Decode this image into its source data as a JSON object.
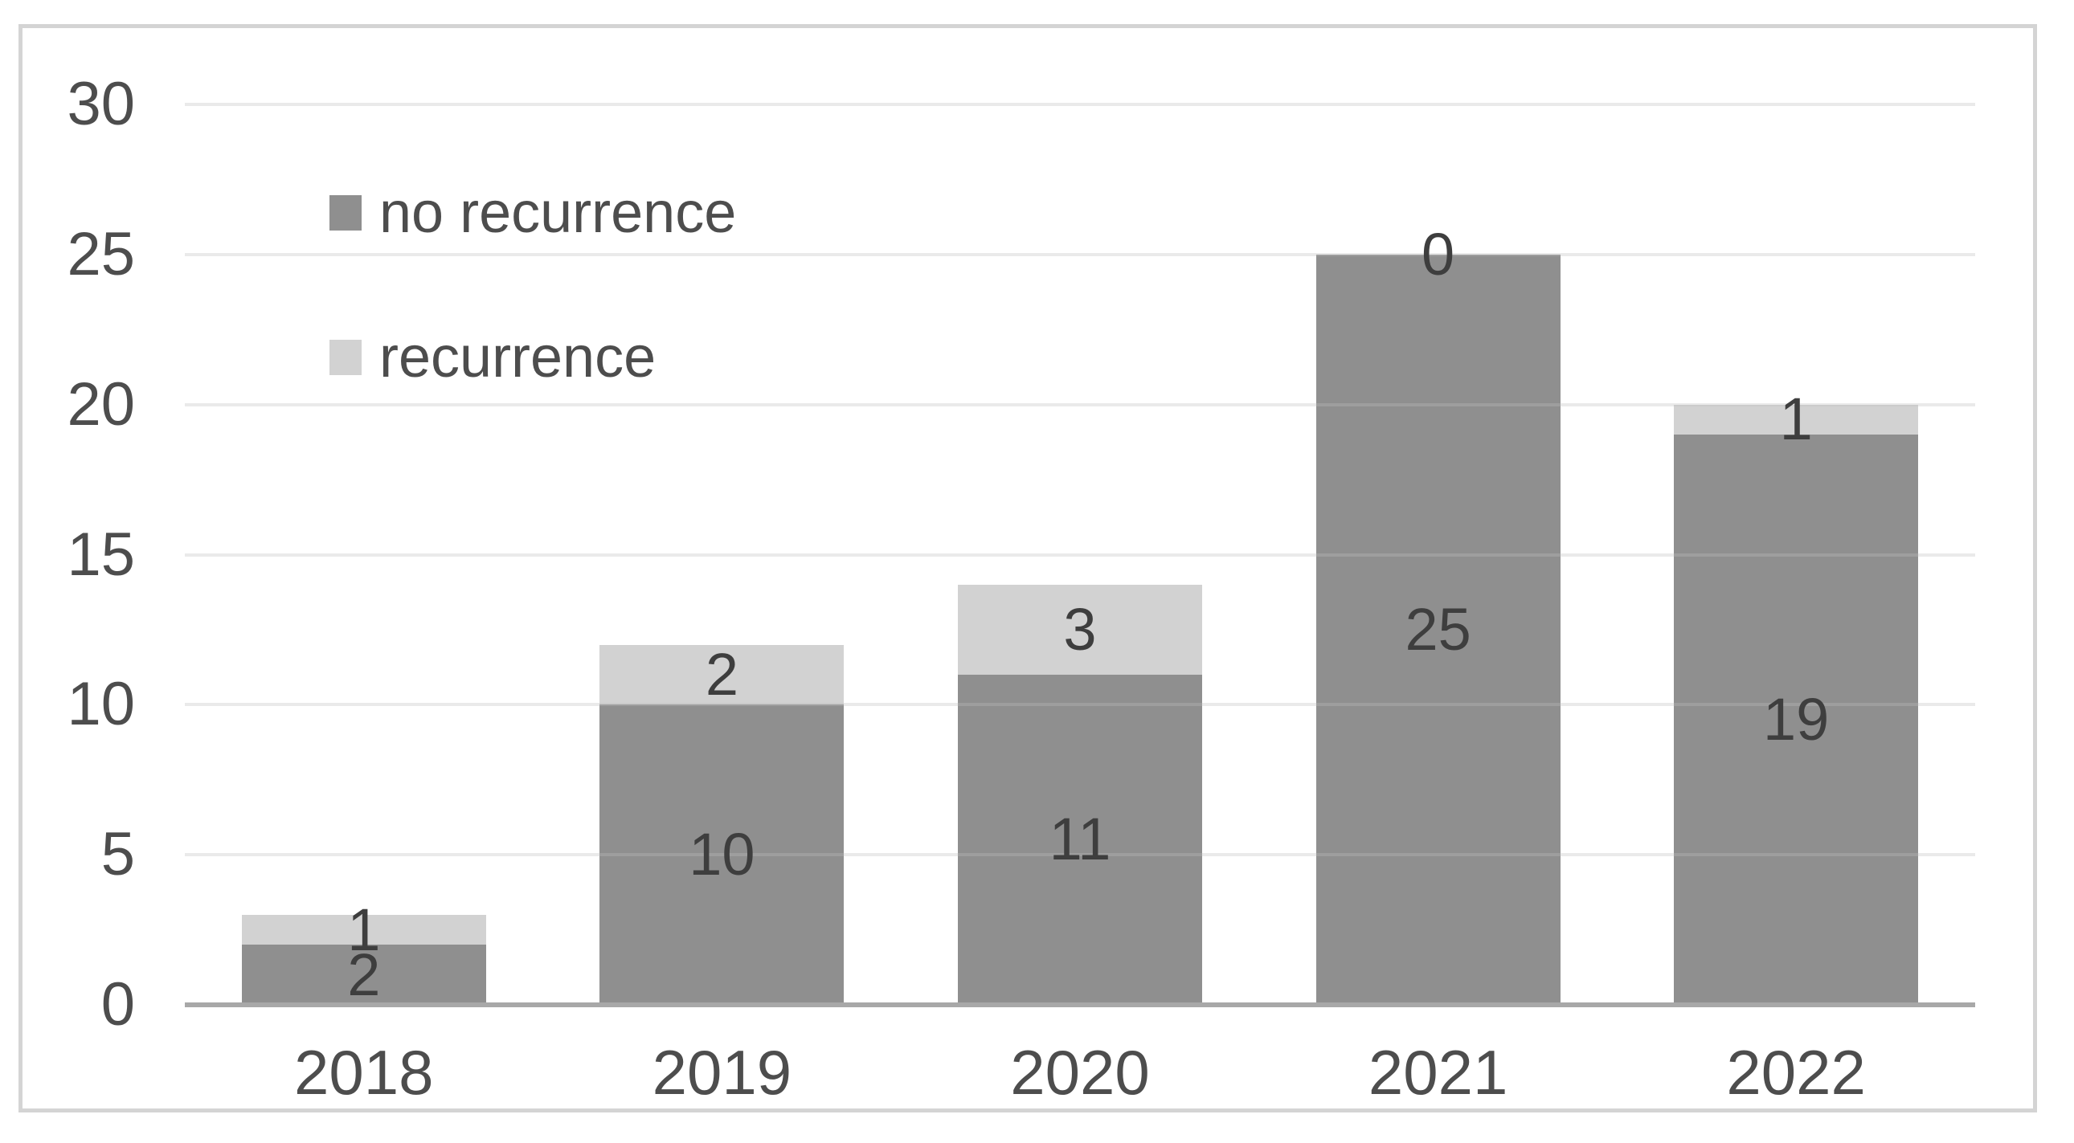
{
  "chart_data": {
    "type": "bar",
    "stacked": true,
    "title": "",
    "xlabel": "",
    "ylabel": "",
    "categories": [
      "2018",
      "2019",
      "2020",
      "2021",
      "2022"
    ],
    "series": [
      {
        "name": "no recurrence",
        "color": "#8f8f8f",
        "values": [
          2,
          10,
          11,
          25,
          19
        ]
      },
      {
        "name": "recurrence",
        "color": "#d2d2d2",
        "values": [
          1,
          2,
          3,
          0,
          1
        ]
      }
    ],
    "ylim": [
      0,
      30
    ],
    "yticks": [
      0,
      5,
      10,
      15,
      20,
      25,
      30
    ],
    "grid": "horizontal",
    "legend_position": "upper-left-inside",
    "data_labels": "center"
  },
  "styles": {
    "background": "#ffffff",
    "border_color": "#d4d4d4",
    "axis_line_color": "#a8a8a8",
    "gridline_color": "#ebebeb",
    "axis_text_color": "#4d4d4d",
    "data_label_color": "#3e3e3e",
    "legend_text_color": "#4d4d4d"
  }
}
